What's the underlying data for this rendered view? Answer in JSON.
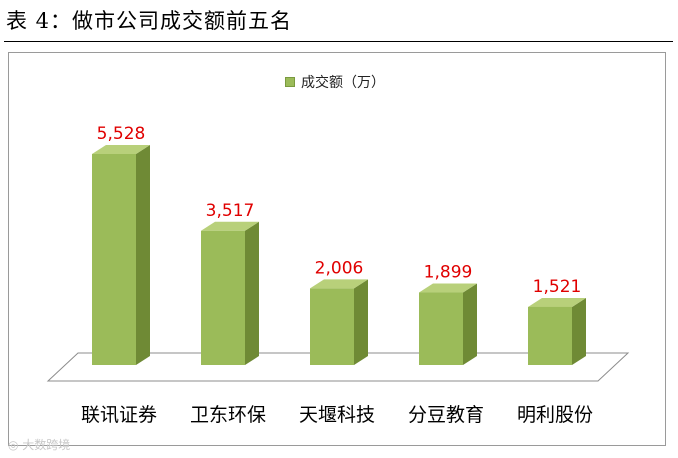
{
  "title": "表 4：做市公司成交额前五名",
  "watermark": "大数跨境",
  "chart_data": {
    "type": "bar",
    "categories": [
      "联讯证券",
      "卫东环保",
      "天堰科技",
      "分豆教育",
      "明利股份"
    ],
    "series": [
      {
        "name": "成交额（万）",
        "values": [
          5528,
          3517,
          2006,
          1899,
          1521
        ],
        "labels": [
          "5,528",
          "3,517",
          "2,006",
          "1,899",
          "1,521"
        ]
      }
    ],
    "legend": "top-center",
    "grid": false,
    "bar_color": "#9bbb59",
    "bar_side_color": "#6f8a35",
    "bar_top_color": "#b8d07a",
    "label_color": "#e00000"
  }
}
